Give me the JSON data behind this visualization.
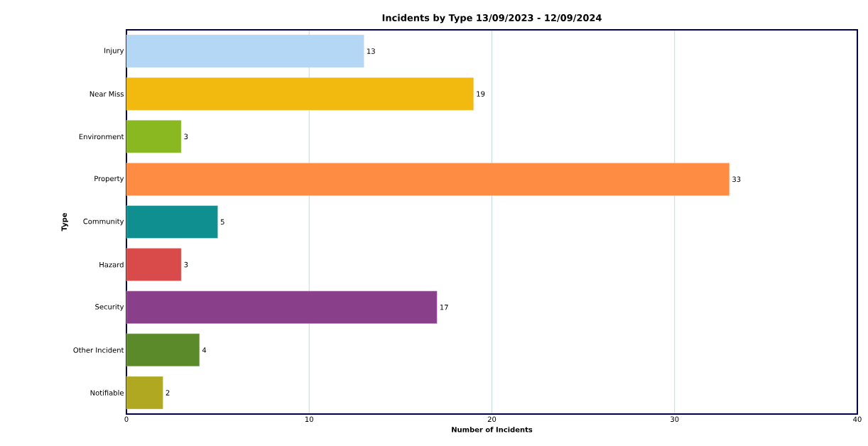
{
  "chart_data": {
    "type": "bar",
    "orientation": "horizontal",
    "title": "Incidents by Type 13/09/2023 - 12/09/2024",
    "xlabel": "Number of Incidents",
    "ylabel": "Type",
    "categories": [
      "Injury",
      "Near Miss",
      "Environment",
      "Property",
      "Community",
      "Hazard",
      "Security",
      "Other Incident",
      "Notifiable"
    ],
    "values": [
      13,
      19,
      3,
      33,
      5,
      3,
      17,
      4,
      2
    ],
    "colors": [
      "#b3d7f5",
      "#f2b90f",
      "#8ab820",
      "#ff8c42",
      "#0f8f8f",
      "#d94a4a",
      "#8a3f8a",
      "#5a8a2a",
      "#b0a820"
    ],
    "xlim": [
      0,
      40
    ],
    "xticks": [
      0,
      10,
      20,
      30,
      40
    ],
    "grid": "x",
    "data_labels": true
  }
}
